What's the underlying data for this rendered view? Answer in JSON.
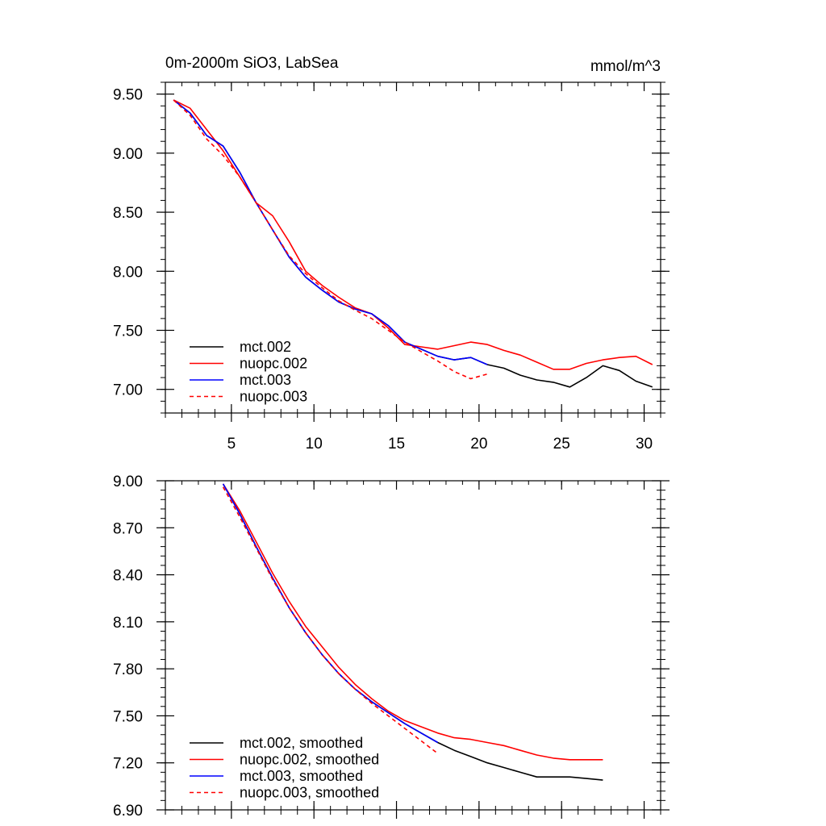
{
  "chart_data": [
    {
      "type": "line",
      "title": "0m-2000m SiO3, LabSea",
      "units": "mmol/m^3",
      "xlim": [
        1,
        31
      ],
      "ylim": [
        6.8,
        9.6
      ],
      "xticks": [
        5,
        10,
        15,
        20,
        25,
        30
      ],
      "xtick_labels": [
        "5",
        "10",
        "15",
        "20",
        "25",
        "30"
      ],
      "yticks": [
        7.0,
        7.5,
        8.0,
        8.5,
        9.0,
        9.5
      ],
      "ytick_labels": [
        "7.00",
        "7.50",
        "8.00",
        "8.50",
        "9.00",
        "9.50"
      ],
      "legend_position": "bottom-left",
      "series": [
        {
          "name": "mct.002",
          "color": "#000000",
          "dash": "solid",
          "x": [
            1.5,
            2.5,
            3.5,
            4.5,
            5.5,
            6.5,
            7.5,
            8.5,
            9.5,
            10.5,
            11.5,
            12.5,
            13.5,
            14.5,
            15.5,
            16.5,
            17.5,
            18.5,
            19.5,
            20.5,
            21.5,
            22.5,
            23.5,
            24.5,
            25.5,
            26.5,
            27.5,
            28.5,
            29.5,
            30.5
          ],
          "values": [
            9.45,
            9.34,
            9.15,
            9.06,
            8.84,
            8.58,
            8.35,
            8.12,
            7.95,
            7.84,
            7.74,
            7.68,
            7.64,
            7.54,
            7.4,
            7.34,
            7.28,
            7.25,
            7.27,
            7.21,
            7.18,
            7.12,
            7.08,
            7.06,
            7.02,
            7.1,
            7.2,
            7.16,
            7.07,
            7.02
          ]
        },
        {
          "name": "nuopc.002",
          "color": "#ff0000",
          "dash": "solid",
          "x": [
            1.5,
            2.5,
            3.5,
            4.5,
            5.5,
            6.5,
            7.5,
            8.5,
            9.5,
            10.5,
            11.5,
            12.5,
            13.5,
            14.5,
            15.5,
            16.5,
            17.5,
            18.5,
            19.5,
            20.5,
            21.5,
            22.5,
            23.5,
            24.5,
            25.5,
            26.5,
            27.5,
            28.5,
            29.5,
            30.5
          ],
          "values": [
            9.45,
            9.38,
            9.2,
            9.02,
            8.8,
            8.58,
            8.47,
            8.25,
            8.0,
            7.88,
            7.78,
            7.69,
            7.64,
            7.52,
            7.38,
            7.36,
            7.34,
            7.37,
            7.4,
            7.38,
            7.33,
            7.29,
            7.23,
            7.17,
            7.17,
            7.22,
            7.25,
            7.27,
            7.28,
            7.21
          ]
        },
        {
          "name": "mct.003",
          "color": "#0000ff",
          "dash": "solid",
          "x": [
            1.5,
            2.5,
            3.5,
            4.5,
            5.5,
            6.5,
            7.5,
            8.5,
            9.5,
            10.5,
            11.5,
            12.5,
            13.5,
            14.5,
            15.5,
            16.5,
            17.5,
            18.5,
            19.5,
            20.5
          ],
          "values": [
            9.45,
            9.34,
            9.15,
            9.06,
            8.84,
            8.58,
            8.35,
            8.12,
            7.95,
            7.84,
            7.74,
            7.68,
            7.64,
            7.54,
            7.4,
            7.34,
            7.28,
            7.25,
            7.27,
            7.21
          ]
        },
        {
          "name": "nuopc.003",
          "color": "#ff0000",
          "dash": "dashed",
          "x": [
            1.5,
            2.5,
            3.5,
            4.5,
            5.5,
            6.5,
            7.5,
            8.5,
            9.5,
            10.5,
            11.5,
            12.5,
            13.5,
            14.5,
            15.5,
            16.5,
            17.5,
            18.5,
            19.5,
            20.5
          ],
          "values": [
            9.45,
            9.32,
            9.12,
            8.98,
            8.8,
            8.58,
            8.35,
            8.13,
            7.98,
            7.86,
            7.75,
            7.67,
            7.6,
            7.5,
            7.4,
            7.32,
            7.24,
            7.15,
            7.09,
            7.13
          ]
        }
      ]
    },
    {
      "type": "line",
      "xlim": [
        1,
        31
      ],
      "ylim": [
        6.9,
        9.0
      ],
      "xticks": [
        5,
        10,
        15,
        20,
        25,
        30
      ],
      "yticks": [
        6.9,
        7.2,
        7.5,
        7.8,
        8.1,
        8.4,
        8.7,
        9.0
      ],
      "ytick_labels": [
        "6.90",
        "7.20",
        "7.50",
        "7.80",
        "8.10",
        "8.40",
        "8.70",
        "9.00"
      ],
      "legend_position": "bottom-left",
      "series": [
        {
          "name": "mct.002, smoothed",
          "color": "#000000",
          "dash": "solid",
          "x": [
            4.5,
            5.5,
            6.5,
            7.5,
            8.5,
            9.5,
            10.5,
            11.5,
            12.5,
            13.5,
            14.5,
            15.5,
            16.5,
            17.5,
            18.5,
            19.5,
            20.5,
            21.5,
            22.5,
            23.5,
            24.5,
            25.5,
            26.5,
            27.5
          ],
          "values": [
            8.98,
            8.79,
            8.58,
            8.38,
            8.19,
            8.03,
            7.89,
            7.77,
            7.67,
            7.59,
            7.52,
            7.45,
            7.39,
            7.33,
            7.28,
            7.24,
            7.2,
            7.17,
            7.14,
            7.11,
            7.11,
            7.11,
            7.1,
            7.09
          ]
        },
        {
          "name": "nuopc.002, smoothed",
          "color": "#ff0000",
          "dash": "solid",
          "x": [
            4.5,
            5.5,
            6.5,
            7.5,
            8.5,
            9.5,
            10.5,
            11.5,
            12.5,
            13.5,
            14.5,
            15.5,
            16.5,
            17.5,
            18.5,
            19.5,
            20.5,
            21.5,
            22.5,
            23.5,
            24.5,
            25.5,
            26.5,
            27.5
          ],
          "values": [
            8.98,
            8.81,
            8.61,
            8.41,
            8.23,
            8.07,
            7.94,
            7.81,
            7.7,
            7.61,
            7.53,
            7.47,
            7.43,
            7.39,
            7.36,
            7.35,
            7.33,
            7.31,
            7.28,
            7.25,
            7.23,
            7.22,
            7.22,
            7.22
          ]
        },
        {
          "name": "mct.003, smoothed",
          "color": "#0000ff",
          "dash": "solid",
          "x": [
            4.5,
            5.5,
            6.5,
            7.5,
            8.5,
            9.5,
            10.5,
            11.5,
            12.5,
            13.5,
            14.5,
            15.5,
            16.5,
            17.5
          ],
          "values": [
            8.98,
            8.79,
            8.58,
            8.38,
            8.19,
            8.03,
            7.89,
            7.77,
            7.67,
            7.59,
            7.52,
            7.45,
            7.39,
            7.33
          ]
        },
        {
          "name": "nuopc.003, smoothed",
          "color": "#ff0000",
          "dash": "dashed",
          "x": [
            4.5,
            5.5,
            6.5,
            7.5,
            8.5,
            9.5,
            10.5,
            11.5,
            12.5,
            13.5,
            14.5,
            15.5,
            16.5,
            17.5
          ],
          "values": [
            8.96,
            8.77,
            8.57,
            8.37,
            8.19,
            8.03,
            7.89,
            7.77,
            7.67,
            7.58,
            7.5,
            7.42,
            7.34,
            7.26
          ]
        }
      ]
    }
  ]
}
